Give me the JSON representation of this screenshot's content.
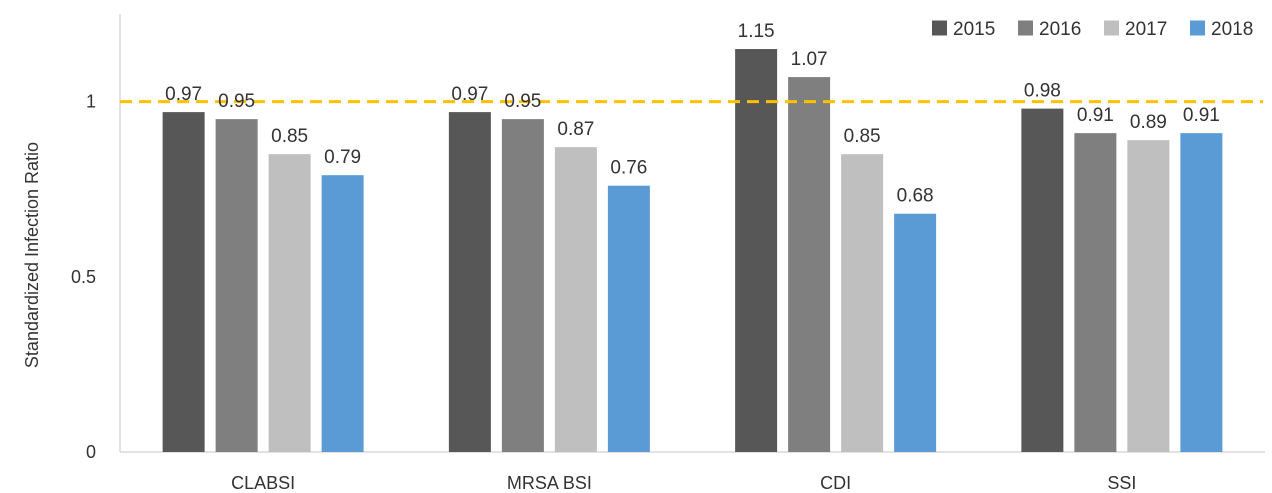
{
  "chart_data": {
    "type": "bar",
    "title": "",
    "xlabel": "",
    "ylabel": "Standardized Infection Ratio",
    "ylim": [
      0,
      1.25
    ],
    "yticks": [
      0,
      0.5,
      1
    ],
    "ytick_labels": [
      "0",
      "0.5",
      "1"
    ],
    "categories": [
      "CLABSI",
      "MRSA BSI",
      "CDI",
      "SSI"
    ],
    "series": [
      {
        "name": "2015",
        "color": "#575757",
        "values": [
          0.97,
          0.97,
          1.15,
          0.98
        ],
        "labels": [
          "0.97",
          "0.97",
          "1.15",
          "0.98"
        ]
      },
      {
        "name": "2016",
        "color": "#7f7f7f",
        "values": [
          0.95,
          0.95,
          1.07,
          0.91
        ],
        "labels": [
          "0.95",
          "0.95",
          "1.07",
          "0.91"
        ]
      },
      {
        "name": "2017",
        "color": "#bfbfbf",
        "values": [
          0.85,
          0.87,
          0.85,
          0.89
        ],
        "labels": [
          "0.85",
          "0.87",
          "0.85",
          "0.89"
        ]
      },
      {
        "name": "2018",
        "color": "#5b9bd5",
        "values": [
          0.79,
          0.76,
          0.68,
          0.91
        ],
        "labels": [
          "0.79",
          "0.76",
          "0.68",
          "0.91"
        ]
      }
    ],
    "reference_line": {
      "value": 1,
      "color": "#ffc000",
      "style": "dashed"
    },
    "legend_position": "top-right",
    "grid": false
  }
}
